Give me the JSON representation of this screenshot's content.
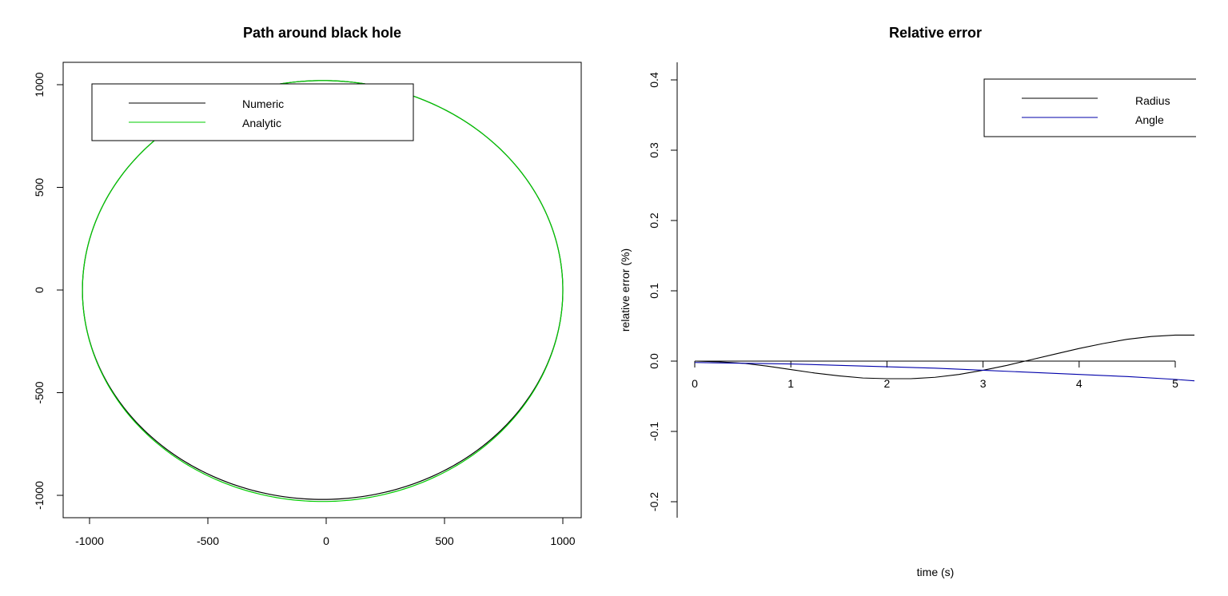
{
  "chart_data": [
    {
      "type": "line",
      "title": "Path around black hole",
      "xlabel": "",
      "ylabel": "",
      "xlim": [
        -1100,
        1100
      ],
      "ylim": [
        -1110,
        1110
      ],
      "xticks": [
        "-1000",
        "-500",
        "0",
        "500",
        "1000"
      ],
      "xtick_values": [
        -1000,
        -500,
        0,
        500,
        1000
      ],
      "yticks": [
        "-1000",
        "-500",
        "0",
        "500",
        "1000"
      ],
      "ytick_values": [
        -1000,
        -500,
        0,
        500,
        1000
      ],
      "legend": {
        "placement": "top-left",
        "entries": [
          "Numeric",
          "Analytic"
        ]
      },
      "series": [
        {
          "name": "Numeric",
          "color": "#000000",
          "shape": {
            "x_left": -1030,
            "x_right": 1000,
            "y_top": 1020,
            "y_bottom": -1020
          }
        },
        {
          "name": "Analytic",
          "color": "#00cc00",
          "shape": {
            "x_left": -1030,
            "x_right": 1000,
            "y_top": 1020,
            "y_bottom": -1030
          }
        }
      ]
    },
    {
      "type": "line",
      "title": "Relative error",
      "xlabel": "time (s)",
      "ylabel": "relative error (%)",
      "xlim": [
        0,
        5.2
      ],
      "ylim": [
        -0.22,
        0.42
      ],
      "xticks": [
        "0",
        "1",
        "2",
        "3",
        "4",
        "5"
      ],
      "xtick_values": [
        0,
        1,
        2,
        3,
        4,
        5
      ],
      "yticks": [
        "-0.2",
        "-0.1",
        "0.0",
        "0.1",
        "0.2",
        "0.3",
        "0.4"
      ],
      "ytick_values": [
        -0.2,
        -0.1,
        0.0,
        0.1,
        0.2,
        0.3,
        0.4
      ],
      "legend": {
        "placement": "top-right",
        "entries": [
          "Radius",
          "Angle"
        ]
      },
      "series": [
        {
          "name": "Radius",
          "color": "#000000",
          "x": [
            0,
            0.25,
            0.5,
            0.75,
            1.0,
            1.25,
            1.5,
            1.75,
            2.0,
            2.25,
            2.5,
            2.75,
            3.0,
            3.25,
            3.5,
            3.75,
            4.0,
            4.25,
            4.5,
            4.75,
            5.0,
            5.2
          ],
          "y": [
            0.0,
            -0.001,
            -0.003,
            -0.007,
            -0.012,
            -0.017,
            -0.021,
            -0.024,
            -0.025,
            -0.025,
            -0.023,
            -0.019,
            -0.013,
            -0.006,
            0.002,
            0.01,
            0.018,
            0.025,
            0.031,
            0.035,
            0.037,
            0.037
          ]
        },
        {
          "name": "Angle",
          "color": "#0000aa",
          "x": [
            0,
            0.5,
            1.0,
            1.5,
            2.0,
            2.5,
            3.0,
            3.5,
            4.0,
            4.5,
            5.0,
            5.2
          ],
          "y": [
            -0.002,
            -0.003,
            -0.004,
            -0.006,
            -0.008,
            -0.01,
            -0.013,
            -0.016,
            -0.019,
            -0.022,
            -0.026,
            -0.028
          ]
        }
      ]
    }
  ]
}
